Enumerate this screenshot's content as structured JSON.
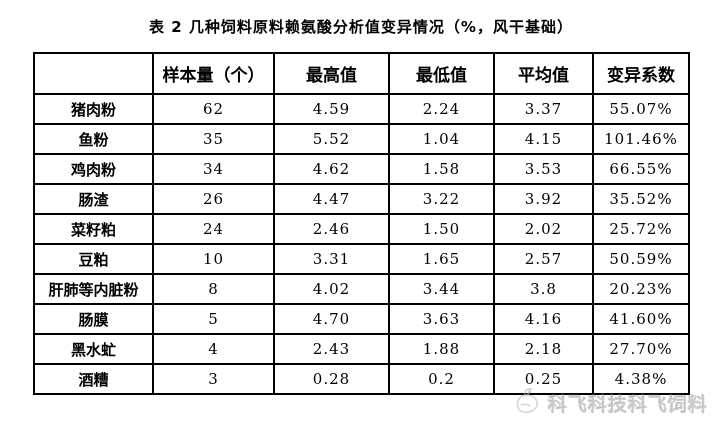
{
  "title": "表 2 几种饲料原料赖氨酸分析值变异情况（%，风干基础）",
  "table": {
    "headers": [
      "",
      "样本量（个）",
      "最高值",
      "最低值",
      "平均值",
      "变异系数"
    ],
    "rows": [
      {
        "name": "猪肉粉",
        "values": [
          "62",
          "4.59",
          "2.24",
          "3.37",
          "55.07%"
        ]
      },
      {
        "name": "鱼粉",
        "values": [
          "35",
          "5.52",
          "1.04",
          "4.15",
          "101.46%"
        ]
      },
      {
        "name": "鸡肉粉",
        "values": [
          "34",
          "4.62",
          "1.58",
          "3.53",
          "66.55%"
        ]
      },
      {
        "name": "肠渣",
        "values": [
          "26",
          "4.47",
          "3.22",
          "3.92",
          "35.52%"
        ]
      },
      {
        "name": "菜籽粕",
        "values": [
          "24",
          "2.46",
          "1.50",
          "2.02",
          "25.72%"
        ]
      },
      {
        "name": "豆粕",
        "values": [
          "10",
          "3.31",
          "1.65",
          "2.57",
          "50.59%"
        ]
      },
      {
        "name": "肝肺等内脏粉",
        "values": [
          "8",
          "4.02",
          "3.44",
          "3.8",
          "20.23%"
        ]
      },
      {
        "name": "肠膜",
        "values": [
          "5",
          "4.70",
          "3.63",
          "4.16",
          "41.60%"
        ]
      },
      {
        "name": "黑水虻",
        "values": [
          "4",
          "2.43",
          "1.88",
          "2.18",
          "27.70%"
        ]
      },
      {
        "name": "酒糟",
        "values": [
          "3",
          "0.28",
          "0.2",
          "0.25",
          "4.38%"
        ]
      }
    ]
  },
  "watermark": {
    "text": "科飞科技科飞饲料",
    "logo": "dove-icon",
    "color": "#bbbbbb"
  },
  "chart_data": {
    "type": "table",
    "title": "表 2 几种饲料原料赖氨酸分析值变异情况（%，风干基础）",
    "columns": [
      "",
      "样本量（个）",
      "最高值",
      "最低值",
      "平均值",
      "变异系数"
    ],
    "rows": [
      [
        "猪肉粉",
        62,
        4.59,
        2.24,
        3.37,
        "55.07%"
      ],
      [
        "鱼粉",
        35,
        5.52,
        1.04,
        4.15,
        "101.46%"
      ],
      [
        "鸡肉粉",
        34,
        4.62,
        1.58,
        3.53,
        "66.55%"
      ],
      [
        "肠渣",
        26,
        4.47,
        3.22,
        3.92,
        "35.52%"
      ],
      [
        "菜籽粕",
        24,
        2.46,
        1.5,
        2.02,
        "25.72%"
      ],
      [
        "豆粕",
        10,
        3.31,
        1.65,
        2.57,
        "50.59%"
      ],
      [
        "肝肺等内脏粉",
        8,
        4.02,
        3.44,
        3.8,
        "20.23%"
      ],
      [
        "肠膜",
        5,
        4.7,
        3.63,
        4.16,
        "41.60%"
      ],
      [
        "黑水虻",
        4,
        2.43,
        1.88,
        2.18,
        "27.70%"
      ],
      [
        "酒糟",
        3,
        0.28,
        0.2,
        0.25,
        "4.38%"
      ]
    ]
  }
}
